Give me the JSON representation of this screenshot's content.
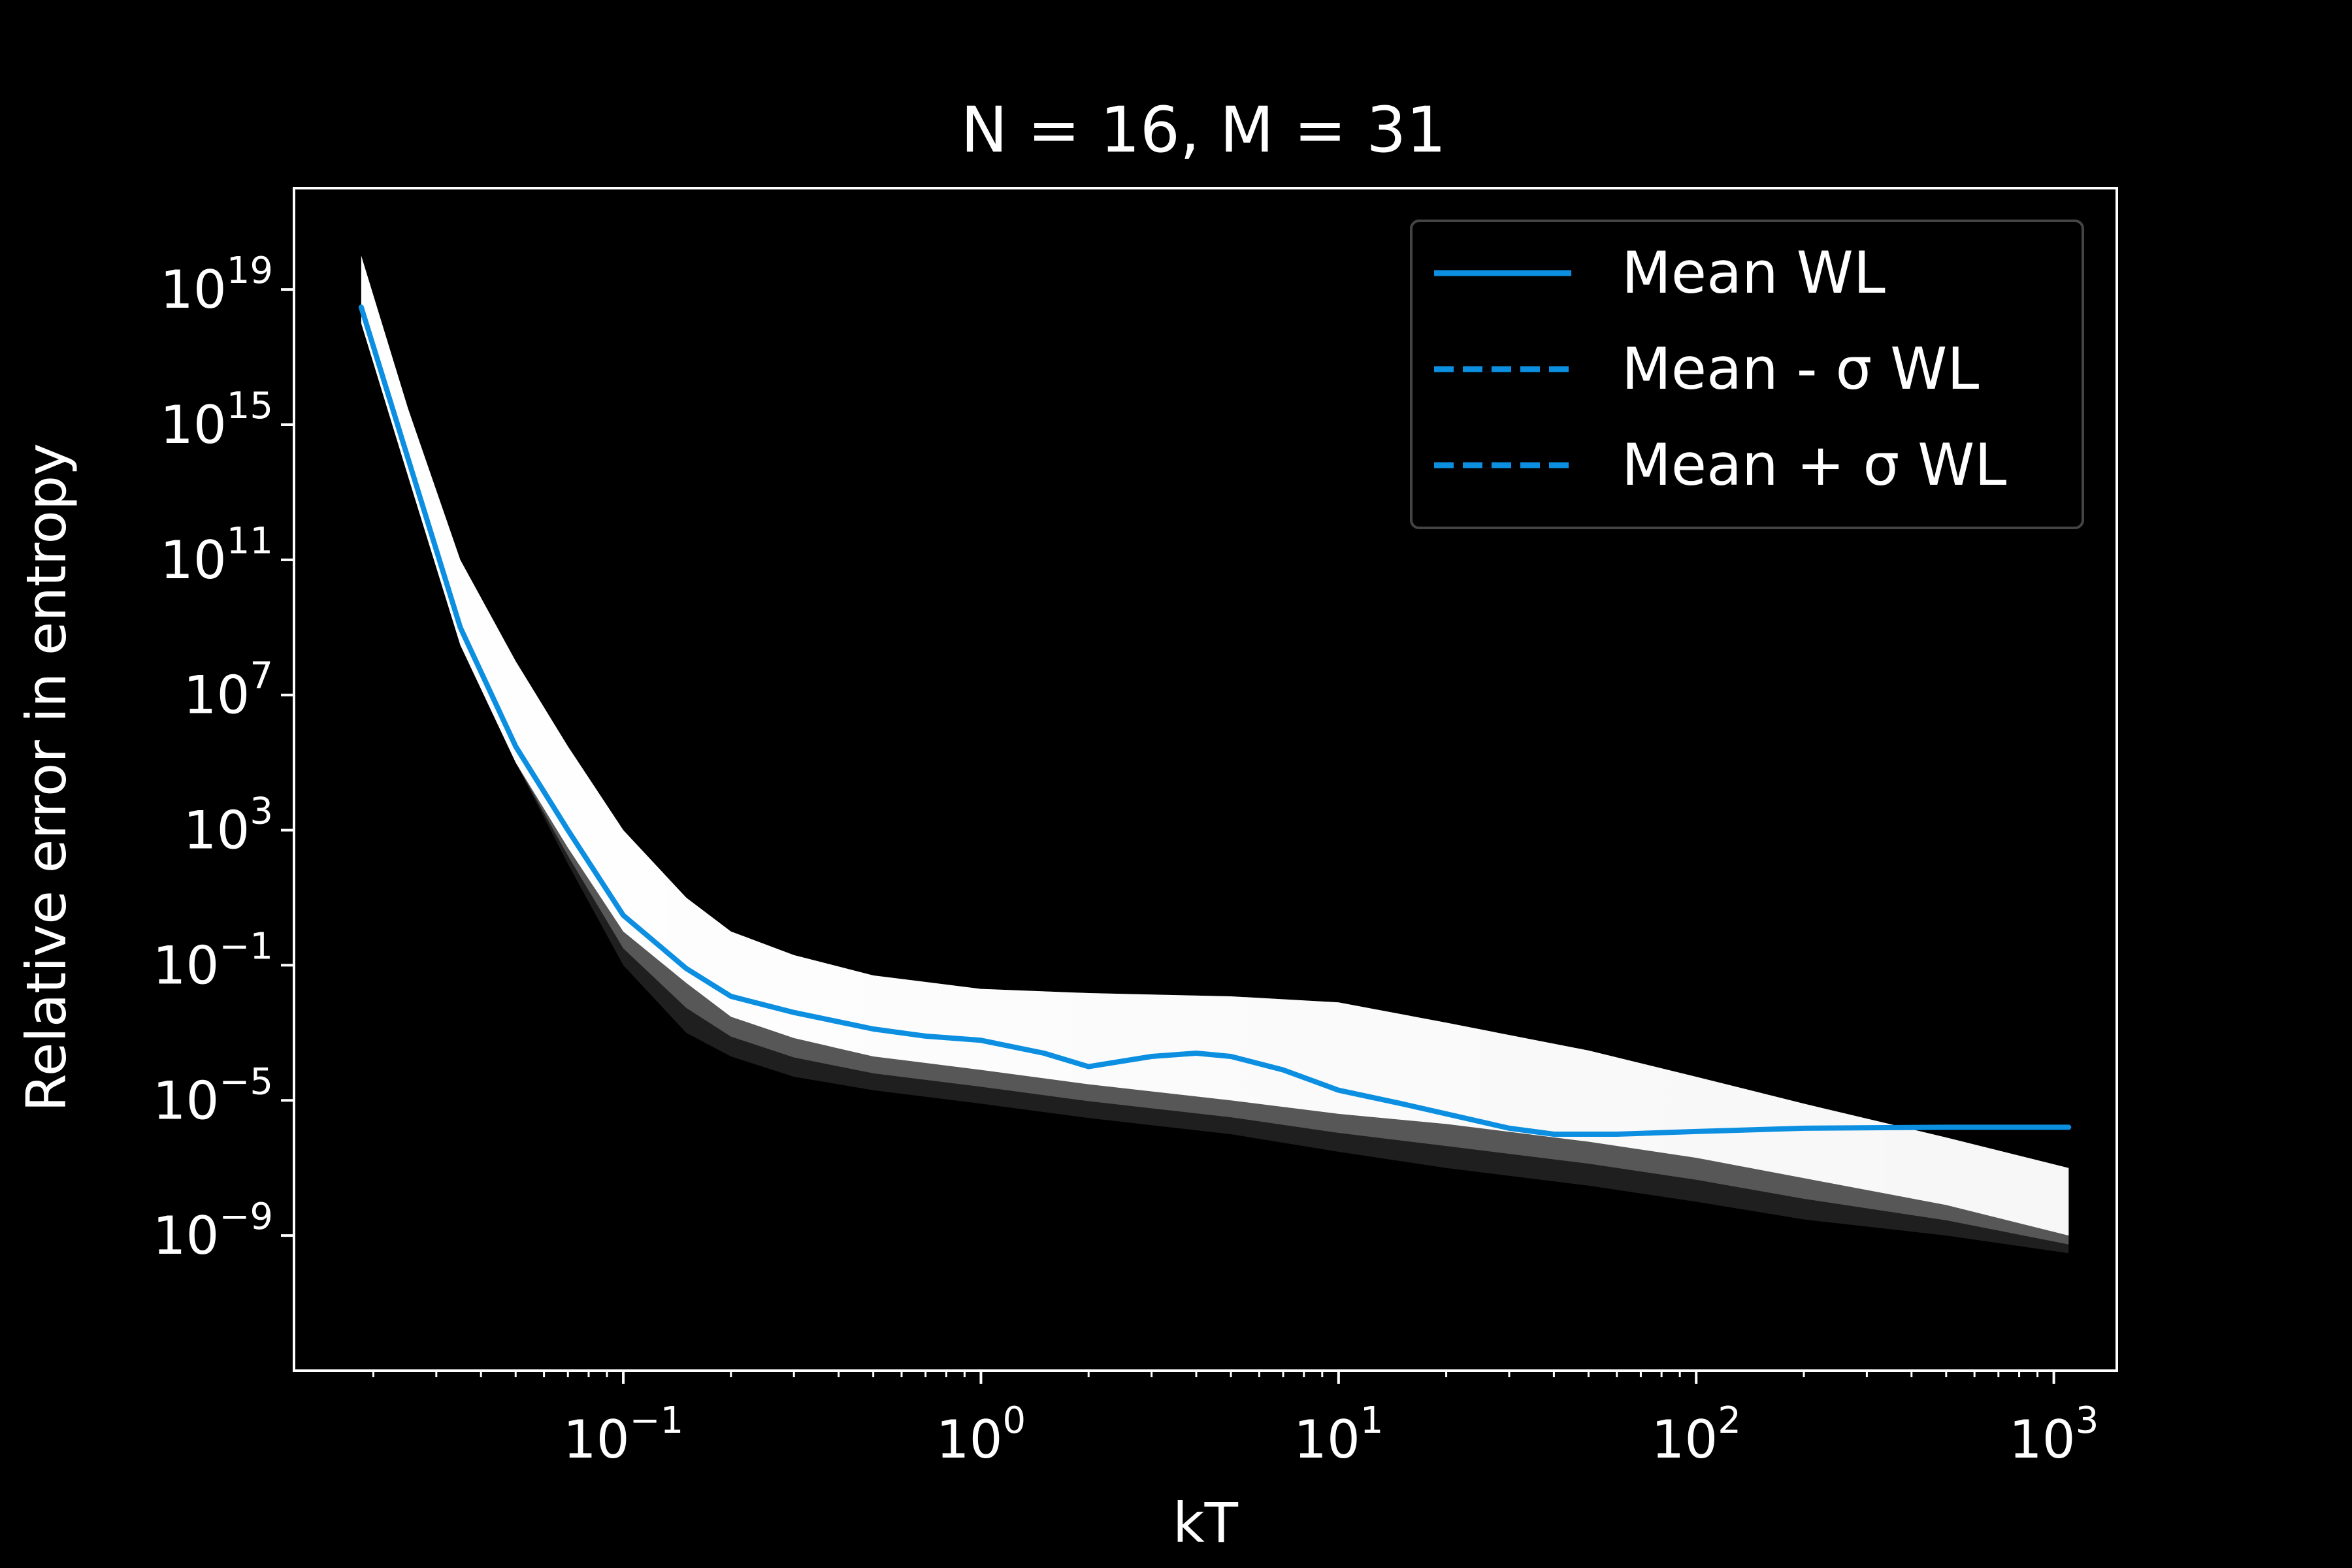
{
  "chart_data": {
    "type": "line",
    "title": "N = 16, M = 31",
    "xlabel": "kT",
    "ylabel": "Relative error in entropy",
    "x_scale": "log",
    "y_scale": "log",
    "xlim": [
      0.012,
      1500
    ],
    "ylim": [
      1e-13,
      1e+22
    ],
    "x_ticks": [
      {
        "value": 0.1,
        "base": "10",
        "exp": "−1"
      },
      {
        "value": 1,
        "base": "10",
        "exp": "0"
      },
      {
        "value": 10,
        "base": "10",
        "exp": "1"
      },
      {
        "value": 100,
        "base": "10",
        "exp": "2"
      },
      {
        "value": 1000,
        "base": "10",
        "exp": "3"
      }
    ],
    "y_ticks": [
      {
        "value": 1e+19,
        "base": "10",
        "exp": "19"
      },
      {
        "value": 1000000000000000.0,
        "base": "10",
        "exp": "15"
      },
      {
        "value": 100000000000.0,
        "base": "10",
        "exp": "11"
      },
      {
        "value": 10000000.0,
        "base": "10",
        "exp": "7"
      },
      {
        "value": 1000.0,
        "base": "10",
        "exp": "3"
      },
      {
        "value": 0.1,
        "base": "10",
        "exp": "−1"
      },
      {
        "value": 1e-05,
        "base": "10",
        "exp": "−5"
      },
      {
        "value": 1e-09,
        "base": "10",
        "exp": "−9"
      }
    ],
    "grid": false,
    "legend_position": "top-right",
    "colors": {
      "background": "#000000",
      "foreground": "#ffffff",
      "mean_line": "#0c8fe0",
      "ensemble": "#ffffff"
    },
    "series": [
      {
        "name": "Mean WL",
        "style": "solid",
        "x": [
          0.0185,
          0.025,
          0.035,
          0.05,
          0.07,
          0.1,
          0.15,
          0.2,
          0.3,
          0.5,
          0.7,
          1,
          1.5,
          2,
          3,
          4,
          5,
          7,
          10,
          15,
          20,
          30,
          40,
          60,
          100,
          200,
          500,
          1100
        ],
        "y": [
          3e+18,
          100000000000000.0,
          1000000000.0,
          300000.0,
          1000.0,
          3,
          0.08,
          0.012,
          0.004,
          0.0013,
          0.0008,
          0.0006,
          0.00025,
          0.0001,
          0.0002,
          0.00025,
          0.0002,
          8e-05,
          2e-05,
          8e-06,
          4e-06,
          1.5e-06,
          1e-06,
          1e-06,
          1.2e-06,
          1.5e-06,
          1.6e-06,
          1.6e-06
        ]
      },
      {
        "name": "Mean - σ WL",
        "style": "dashed",
        "x": [],
        "y": []
      },
      {
        "name": "Mean + σ WL",
        "style": "dashed",
        "x": [],
        "y": []
      }
    ],
    "ensemble_band": {
      "x": [
        0.0185,
        0.025,
        0.035,
        0.05,
        0.07,
        0.1,
        0.15,
        0.2,
        0.3,
        0.5,
        1,
        2,
        5,
        10,
        20,
        50,
        100,
        200,
        500,
        1100
      ],
      "upper": [
        1e+20,
        3000000000000000.0,
        100000000000.0,
        100000000.0,
        300000.0,
        1000.0,
        10,
        1,
        0.2,
        0.05,
        0.02,
        0.015,
        0.012,
        0.008,
        0.002,
        0.0003,
        5e-05,
        8e-06,
        8e-07,
        1e-07
      ],
      "lower": [
        1e+18,
        30000000000000.0,
        300000000.0,
        100000.0,
        300,
        1,
        0.03,
        0.003,
        0.0007,
        0.0002,
        8e-05,
        3e-05,
        1e-05,
        4e-06,
        2e-06,
        6e-07,
        2e-07,
        5e-08,
        8e-09,
        1e-09
      ],
      "faint_floor": [
        1e+18,
        30000000000000.0,
        300000000.0,
        100000.0,
        100,
        0.1,
        0.001,
        0.0002,
        5e-05,
        2e-05,
        8e-06,
        3e-06,
        1e-06,
        3e-07,
        1e-07,
        3e-08,
        1e-08,
        3e-09,
        1e-09,
        3e-10
      ]
    }
  }
}
